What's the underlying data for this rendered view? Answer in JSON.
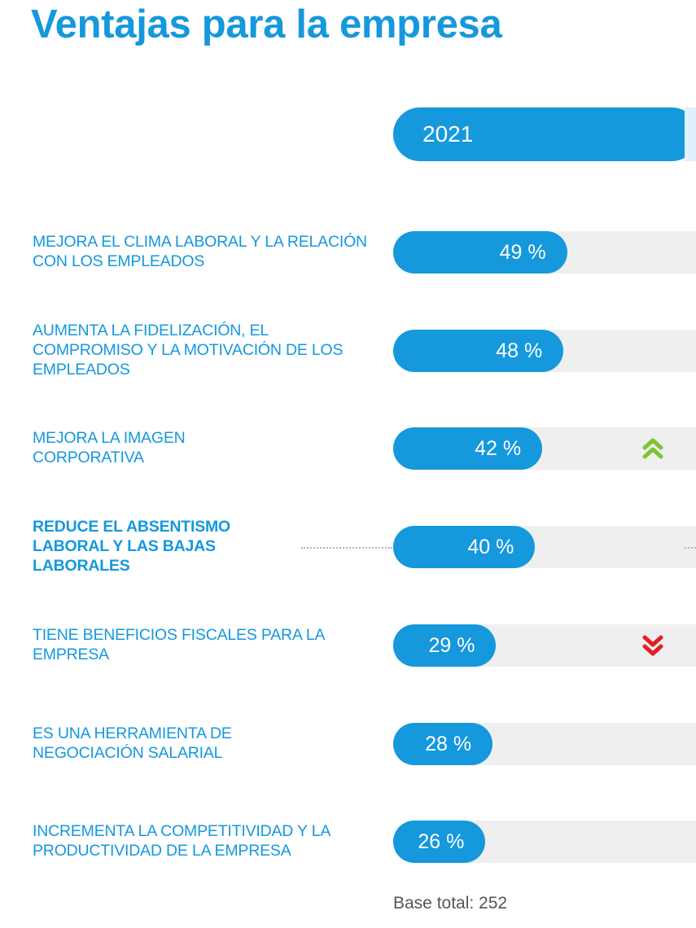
{
  "title": "Ventajas para la empresa",
  "footer_note": "Base total: 252",
  "colors": {
    "accent": "#1598dc",
    "track": "#efefef",
    "trend_up": "#7cc433",
    "trend_down": "#e31e24"
  },
  "chart_data": {
    "type": "bar",
    "orientation": "horizontal",
    "series": [
      {
        "name": "2021",
        "values": [
          49,
          48,
          42,
          40,
          29,
          28,
          26
        ]
      }
    ],
    "categories": [
      "MEJORA EL CLIMA LABORAL Y LA RELACIÓN CON LOS EMPLEADOS",
      "AUMENTA LA FIDELIZACIÓN, EL COMPROMISO Y LA MOTIVACIÓN DE LOS EMPLEADOS",
      "MEJORA LA IMAGEN CORPORATIVA",
      "REDUCE EL ABSENTISMO LABORAL Y LAS BAJAS LABORALES",
      "TIENE BENEFICIOS FISCALES PARA LA EMPRESA",
      "ES UNA HERRAMIENTA DE NEGOCIACIÓN SALARIAL",
      "INCREMENTA LA COMPETITIVIDAD Y LA PRODUCTIVIDAD DE LA EMPRESA"
    ],
    "value_labels": [
      "49 %",
      "48 %",
      "42 %",
      "40 %",
      "29 %",
      "28 %",
      "26 %"
    ],
    "trend_icons": [
      "",
      "",
      "double-chevron-up-icon",
      "",
      "double-chevron-down-icon",
      "",
      ""
    ],
    "highlighted_category_index": 3,
    "xlim": [
      0,
      100
    ],
    "legend": "top",
    "grid": false
  }
}
